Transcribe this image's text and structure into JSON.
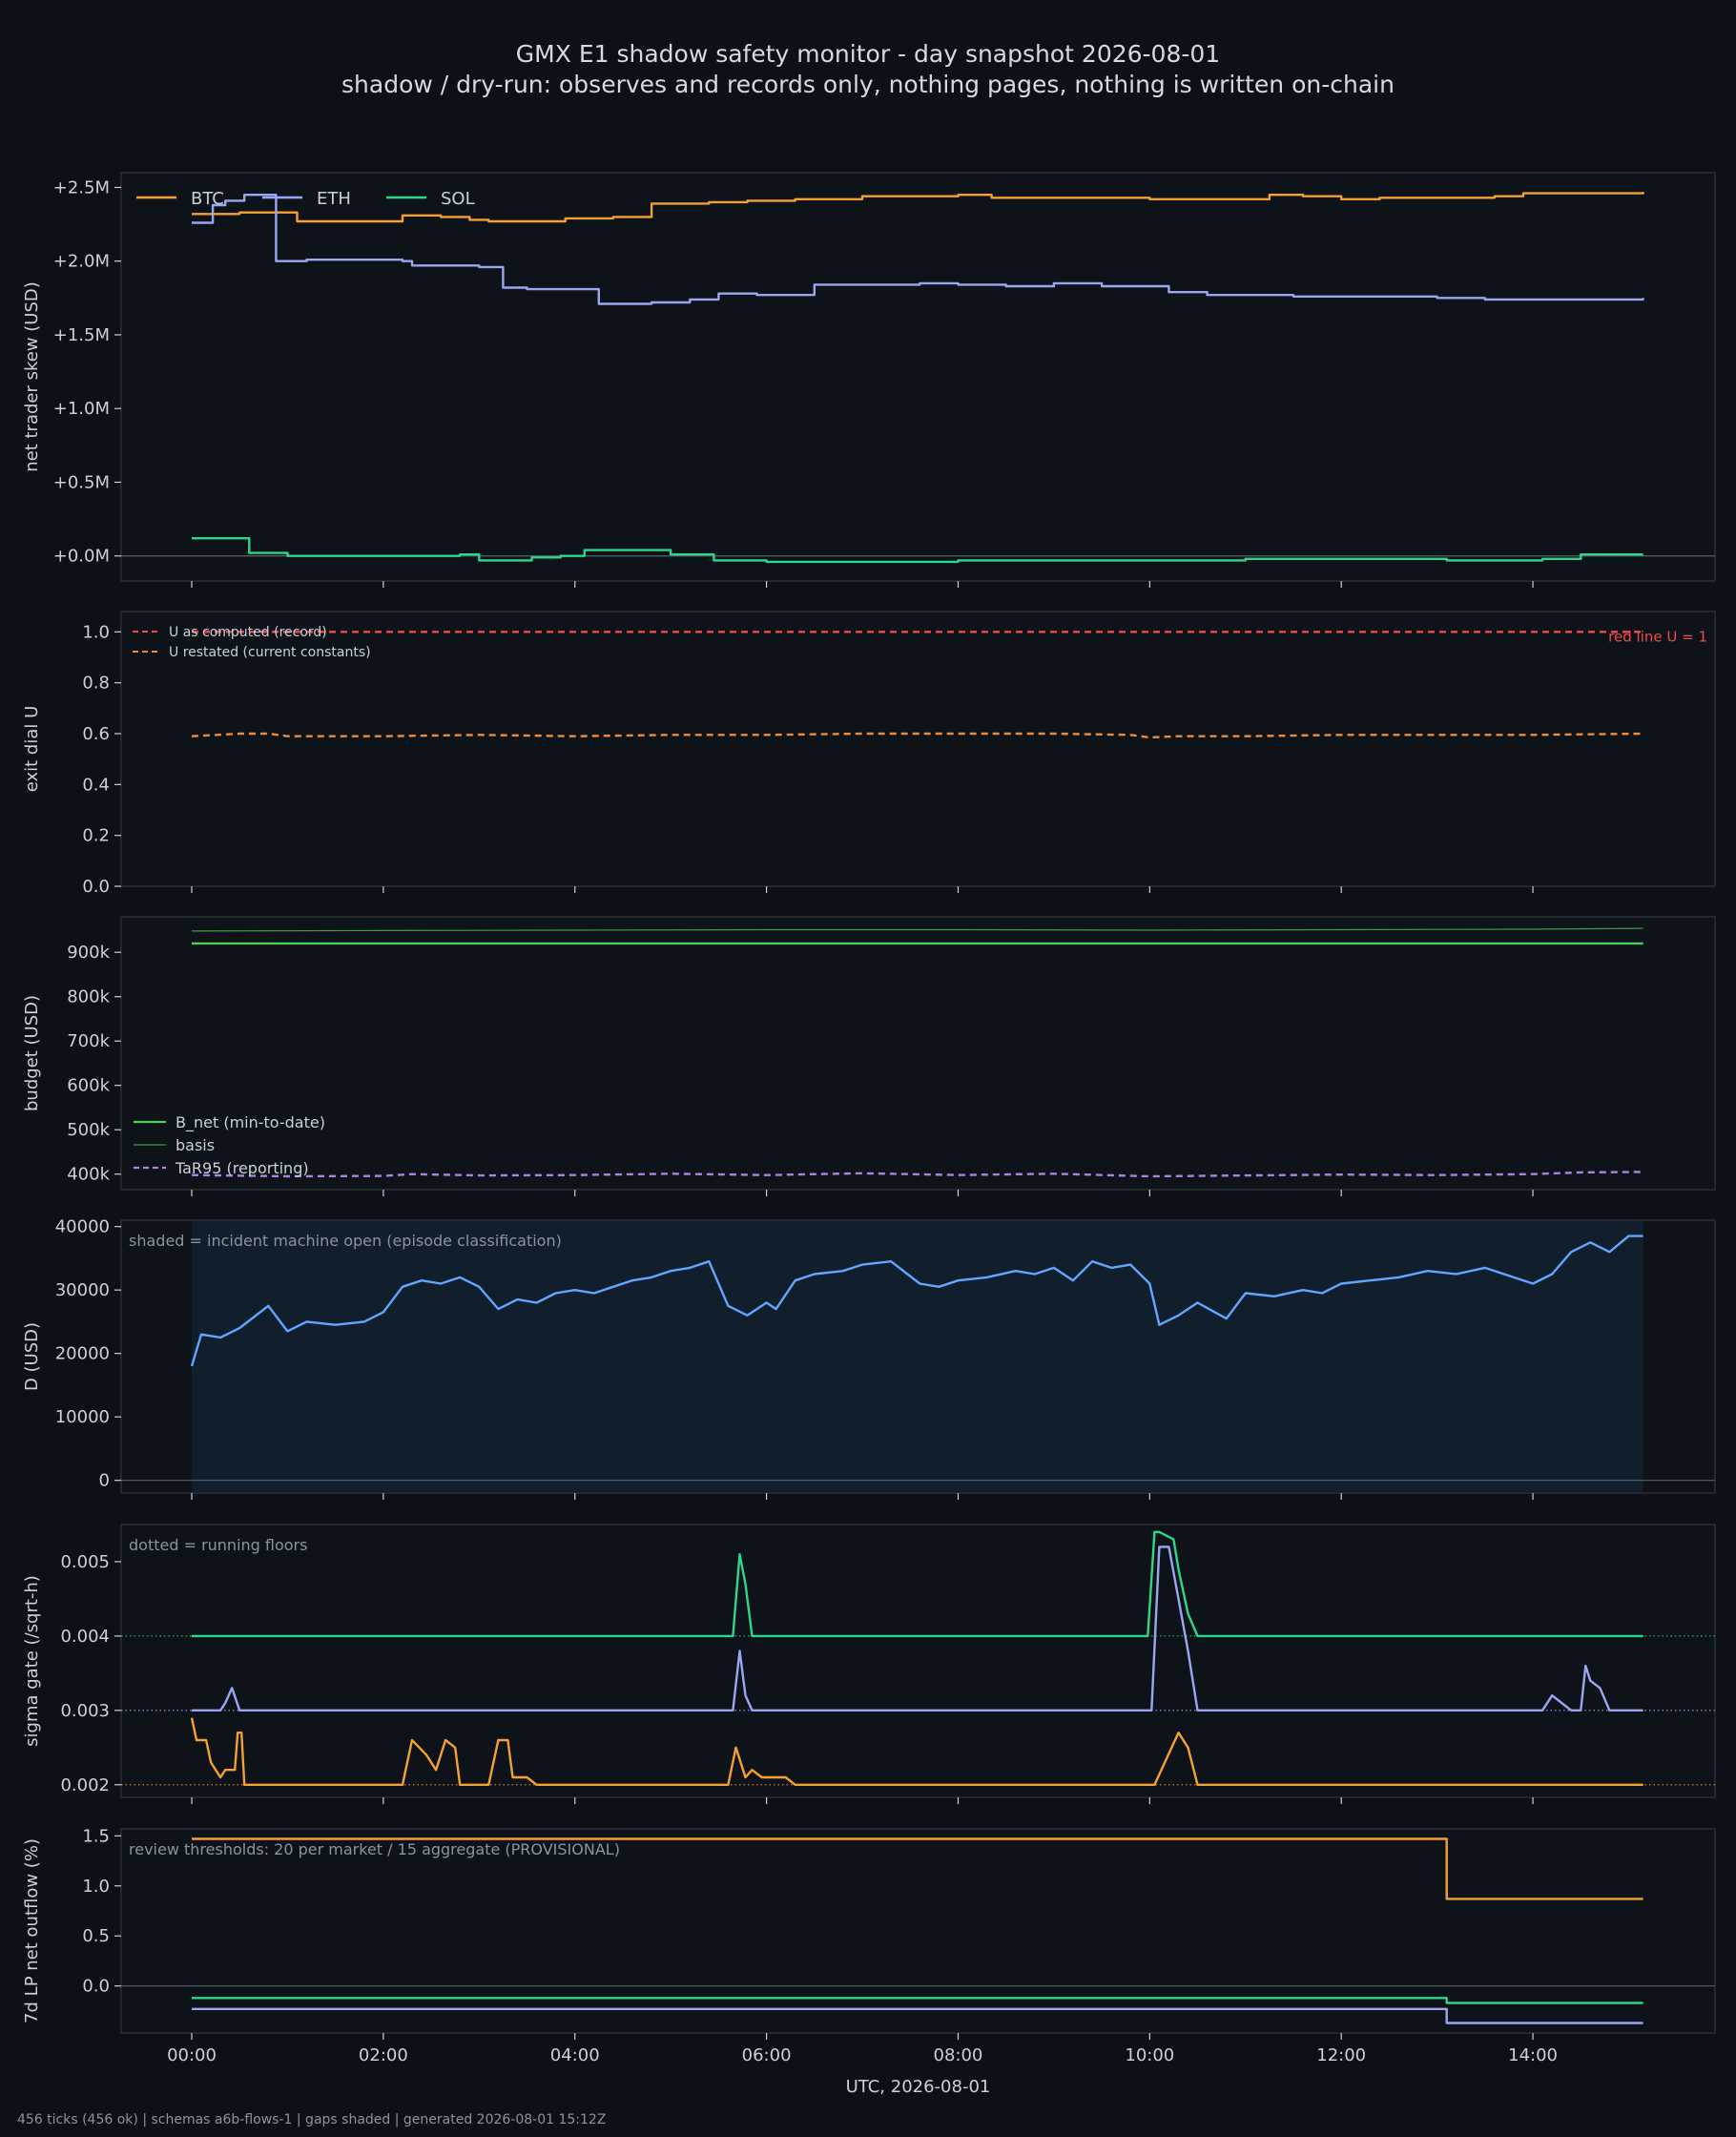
{
  "header": {
    "title": "GMX E1 shadow safety monitor - day snapshot 2026-08-01",
    "subtitle": "shadow / dry-run: observes and records only, nothing pages, nothing is written on-chain"
  },
  "footer": "456 ticks (456 ok) | schemas a6b-flows-1 | gaps shaded | generated 2026-08-01 15:12Z",
  "colors": {
    "background": "#0d1117",
    "panel": "#0e131a",
    "btc": "#f5a032",
    "eth": "#9aa6f2",
    "sol": "#2fd68a",
    "u_computed": "#f04a4a",
    "u_restated": "#f08a3a",
    "b_net": "#4fcf4f",
    "basis": "#3f9a4f",
    "tar95": "#a884e0",
    "d": "#62a6ff",
    "shade": "#122130"
  },
  "chart_data": [
    {
      "type": "line",
      "panel": "skew",
      "title": "",
      "xlabel": "",
      "ylabel": "net trader skew (USD)",
      "xlim": [
        0,
        15.15
      ],
      "ylim": [
        -0.17,
        2.6
      ],
      "yticks": [
        0,
        0.5,
        1.0,
        1.5,
        2.0,
        2.5
      ],
      "ytick_labels": [
        "+0.0M",
        "+0.5M",
        "+1.0M",
        "+1.5M",
        "+2.0M",
        "+2.5M"
      ],
      "zero_line": true,
      "legend": "top-left horizontal",
      "series": [
        {
          "name": "BTC",
          "color": "#f5a032",
          "step": true,
          "x": [
            0,
            0.5,
            1.1,
            2.2,
            2.6,
            2.9,
            3.1,
            3.9,
            4.4,
            4.8,
            5.4,
            5.8,
            6.3,
            7.0,
            8.0,
            8.35,
            9.4,
            10.0,
            10.9,
            11.25,
            11.6,
            12.0,
            12.4,
            13.0,
            13.6,
            13.9,
            14.2,
            14.6,
            15.15
          ],
          "y": [
            2.32,
            2.33,
            2.27,
            2.31,
            2.3,
            2.28,
            2.27,
            2.29,
            2.3,
            2.39,
            2.4,
            2.41,
            2.42,
            2.44,
            2.45,
            2.43,
            2.43,
            2.42,
            2.42,
            2.45,
            2.44,
            2.42,
            2.43,
            2.43,
            2.44,
            2.46,
            2.46,
            2.46,
            2.47
          ]
        },
        {
          "name": "ETH",
          "color": "#9aa6f2",
          "step": true,
          "x": [
            0,
            0.22,
            0.35,
            0.55,
            0.88,
            1.2,
            2.2,
            2.3,
            3.0,
            3.25,
            3.5,
            4.0,
            4.25,
            4.5,
            4.8,
            5.2,
            5.5,
            5.9,
            6.5,
            7.0,
            7.6,
            8.0,
            8.5,
            9.0,
            9.5,
            10.2,
            10.6,
            11.0,
            11.5,
            12.0,
            12.5,
            13.0,
            13.5,
            14.0,
            14.5,
            15.15
          ],
          "y": [
            2.26,
            2.38,
            2.41,
            2.45,
            2.0,
            2.01,
            2.0,
            1.97,
            1.96,
            1.82,
            1.81,
            1.81,
            1.71,
            1.71,
            1.72,
            1.74,
            1.78,
            1.77,
            1.84,
            1.84,
            1.85,
            1.84,
            1.83,
            1.85,
            1.83,
            1.79,
            1.77,
            1.77,
            1.76,
            1.76,
            1.76,
            1.75,
            1.74,
            1.74,
            1.74,
            1.75
          ]
        },
        {
          "name": "SOL",
          "color": "#2fd68a",
          "step": true,
          "x": [
            0,
            0.35,
            0.6,
            1.0,
            2.0,
            2.8,
            3.0,
            3.2,
            3.55,
            3.85,
            4.1,
            4.55,
            5.0,
            5.45,
            6.0,
            7.0,
            8.0,
            9.0,
            10.3,
            11.0,
            12.0,
            12.5,
            13.1,
            14.1,
            14.5,
            15.15
          ],
          "y": [
            0.12,
            0.12,
            0.02,
            0.0,
            0.0,
            0.01,
            -0.03,
            -0.03,
            -0.01,
            0.0,
            0.04,
            0.04,
            0.01,
            -0.03,
            -0.04,
            -0.04,
            -0.03,
            -0.03,
            -0.03,
            -0.02,
            -0.02,
            -0.02,
            -0.03,
            -0.02,
            0.01,
            0.01
          ]
        }
      ]
    },
    {
      "type": "line",
      "panel": "exit_dial",
      "title": "",
      "xlabel": "",
      "ylabel": "exit dial U",
      "xlim": [
        0,
        15.15
      ],
      "ylim": [
        0,
        1.08
      ],
      "yticks": [
        0,
        0.2,
        0.4,
        0.6,
        0.8,
        1.0
      ],
      "ytick_labels": [
        "0.0",
        "0.2",
        "0.4",
        "0.6",
        "0.8",
        "1.0"
      ],
      "legend": "top-left",
      "annotation": "red line U = 1",
      "reference_line": 1.0,
      "series": [
        {
          "name": "U as computed (record)",
          "color": "#f04a4a",
          "style": "dashed",
          "x": [
            0,
            15.15
          ],
          "y": [
            1.0,
            1.0
          ]
        },
        {
          "name": "U restated (current constants)",
          "color": "#f08a3a",
          "style": "dashed",
          "x": [
            0,
            0.5,
            0.8,
            1.0,
            2.0,
            3.0,
            4.0,
            5.0,
            6.0,
            7.0,
            8.0,
            9.0,
            9.8,
            10.0,
            10.3,
            11.0,
            12.0,
            13.0,
            14.0,
            15.15
          ],
          "y": [
            0.59,
            0.6,
            0.6,
            0.59,
            0.59,
            0.595,
            0.59,
            0.595,
            0.595,
            0.6,
            0.6,
            0.6,
            0.595,
            0.585,
            0.59,
            0.59,
            0.595,
            0.595,
            0.595,
            0.6
          ]
        }
      ]
    },
    {
      "type": "line",
      "panel": "budget",
      "title": "",
      "xlabel": "",
      "ylabel": "budget (USD)",
      "xlim": [
        0,
        15.15
      ],
      "ylim": [
        365000,
        980000
      ],
      "yticks": [
        400000,
        500000,
        600000,
        700000,
        800000,
        900000
      ],
      "ytick_labels": [
        "400k",
        "500k",
        "600k",
        "700k",
        "800k",
        "900k"
      ],
      "legend": "bottom-left",
      "series": [
        {
          "name": "B_net (min-to-date)",
          "color": "#4fcf4f",
          "x": [
            0,
            15.15
          ],
          "y": [
            920000,
            920000
          ]
        },
        {
          "name": "basis",
          "color": "#3f9a4f",
          "x": [
            0,
            2,
            4,
            6,
            8,
            10,
            12,
            14,
            15.15
          ],
          "y": [
            948000,
            949000,
            950000,
            951000,
            951000,
            950000,
            951000,
            952000,
            954000
          ]
        },
        {
          "name": "TaR95 (reporting)",
          "color": "#a884e0",
          "style": "dashed",
          "x": [
            0,
            1,
            2,
            2.3,
            3,
            4,
            5,
            6,
            7,
            8,
            9,
            10,
            11,
            12,
            13,
            14,
            14.5,
            15.15
          ],
          "y": [
            398000,
            395000,
            396000,
            400000,
            397000,
            398000,
            401000,
            398000,
            402000,
            398000,
            401000,
            395000,
            397000,
            399000,
            398000,
            400000,
            404000,
            405000
          ]
        }
      ]
    },
    {
      "type": "area",
      "panel": "D",
      "title": "",
      "xlabel": "",
      "ylabel": "D (USD)",
      "xlim": [
        0,
        15.15
      ],
      "ylim": [
        -2000,
        41000
      ],
      "yticks": [
        0,
        10000,
        20000,
        30000,
        40000
      ],
      "ytick_labels": [
        "0",
        "10000",
        "20000",
        "30000",
        "40000"
      ],
      "annotation": "shaded = incident machine open (episode classification)",
      "shaded_range": [
        0,
        15.15
      ],
      "zero_line": true,
      "series": [
        {
          "name": "D",
          "color": "#62a6ff",
          "x": [
            0,
            0.1,
            0.3,
            0.5,
            0.8,
            1.0,
            1.2,
            1.5,
            1.8,
            2.0,
            2.2,
            2.4,
            2.6,
            2.8,
            3.0,
            3.2,
            3.4,
            3.6,
            3.8,
            4.0,
            4.2,
            4.4,
            4.6,
            4.8,
            5.0,
            5.2,
            5.4,
            5.6,
            5.8,
            6.0,
            6.1,
            6.3,
            6.5,
            6.8,
            7.0,
            7.3,
            7.6,
            7.8,
            8.0,
            8.3,
            8.6,
            8.8,
            9.0,
            9.2,
            9.4,
            9.6,
            9.8,
            10.0,
            10.1,
            10.3,
            10.5,
            10.8,
            11.0,
            11.3,
            11.6,
            11.8,
            12.0,
            12.3,
            12.6,
            12.9,
            13.2,
            13.5,
            13.8,
            14.0,
            14.2,
            14.4,
            14.6,
            14.8,
            15.0,
            15.15
          ],
          "y": [
            18000,
            23000,
            22500,
            24000,
            27500,
            23500,
            25000,
            24500,
            25000,
            26500,
            30500,
            31500,
            31000,
            32000,
            30500,
            27000,
            28500,
            28000,
            29500,
            30000,
            29500,
            30500,
            31500,
            32000,
            33000,
            33500,
            34500,
            27500,
            26000,
            28000,
            27000,
            31500,
            32500,
            33000,
            34000,
            34500,
            31000,
            30500,
            31500,
            32000,
            33000,
            32500,
            33500,
            31500,
            34500,
            33500,
            34000,
            31000,
            24500,
            26000,
            28000,
            25500,
            29500,
            29000,
            30000,
            29500,
            31000,
            31500,
            32000,
            33000,
            32500,
            33500,
            32000,
            31000,
            32500,
            36000,
            37500,
            36000,
            38500,
            38500
          ]
        }
      ]
    },
    {
      "type": "line",
      "panel": "sigma_gate",
      "title": "",
      "xlabel": "",
      "ylabel": "sigma gate (/sqrt-h)",
      "xlim": [
        0,
        15.15
      ],
      "ylim": [
        0.00183,
        0.0055
      ],
      "yticks": [
        0.002,
        0.003,
        0.004,
        0.005
      ],
      "ytick_labels": [
        "0.002",
        "0.003",
        "0.004",
        "0.005"
      ],
      "annotation": "dotted = running floors",
      "floors": [
        {
          "value": 0.004,
          "color": "#2fd68a"
        },
        {
          "value": 0.003,
          "color": "#9aa6f2"
        },
        {
          "value": 0.002,
          "color": "#f5a032"
        }
      ],
      "series": [
        {
          "name": "",
          "color": "#2fd68a",
          "x": [
            0,
            5.65,
            5.72,
            5.78,
            5.85,
            9.98,
            10.05,
            10.1,
            10.25,
            10.3,
            10.4,
            10.5,
            15.15
          ],
          "y": [
            0.004,
            0.004,
            0.0051,
            0.0047,
            0.004,
            0.004,
            0.0054,
            0.0054,
            0.0053,
            0.0049,
            0.0043,
            0.004,
            0.004
          ]
        },
        {
          "name": "",
          "color": "#9aa6f2",
          "x": [
            0,
            0.3,
            0.35,
            0.42,
            0.5,
            5.65,
            5.72,
            5.78,
            5.85,
            10.02,
            10.1,
            10.2,
            10.3,
            10.4,
            10.5,
            14.1,
            14.2,
            14.3,
            14.4,
            14.5,
            14.55,
            14.6,
            14.7,
            14.8,
            15.15
          ],
          "y": [
            0.003,
            0.003,
            0.0031,
            0.0033,
            0.003,
            0.003,
            0.0038,
            0.0032,
            0.003,
            0.003,
            0.0052,
            0.0052,
            0.0045,
            0.0038,
            0.003,
            0.003,
            0.0032,
            0.0031,
            0.003,
            0.003,
            0.0036,
            0.0034,
            0.0033,
            0.003,
            0.003
          ]
        },
        {
          "name": "",
          "color": "#f5a032",
          "x": [
            0,
            0.05,
            0.15,
            0.2,
            0.3,
            0.35,
            0.45,
            0.48,
            0.52,
            0.55,
            2.2,
            2.3,
            2.45,
            2.55,
            2.65,
            2.75,
            2.8,
            3.1,
            3.2,
            3.3,
            3.35,
            3.5,
            3.6,
            5.6,
            5.68,
            5.78,
            5.85,
            5.95,
            6.2,
            6.3,
            10.05,
            10.3,
            10.4,
            10.5,
            15.15
          ],
          "y": [
            0.0029,
            0.0026,
            0.0026,
            0.0023,
            0.0021,
            0.0022,
            0.0022,
            0.0027,
            0.0027,
            0.002,
            0.002,
            0.0026,
            0.0024,
            0.0022,
            0.0026,
            0.0025,
            0.002,
            0.002,
            0.0026,
            0.0026,
            0.0021,
            0.0021,
            0.002,
            0.002,
            0.0025,
            0.0021,
            0.0022,
            0.0021,
            0.0021,
            0.002,
            0.002,
            0.0027,
            0.0025,
            0.002,
            0.002
          ]
        }
      ]
    },
    {
      "type": "line",
      "panel": "lp_outflow",
      "title": "",
      "xlabel": "UTC, 2026-08-01",
      "ylabel": "7d LP net outflow (%)",
      "xlim": [
        0,
        15.15
      ],
      "ylim": [
        -0.47,
        1.57
      ],
      "yticks": [
        0,
        0.5,
        1.0,
        1.5
      ],
      "ytick_labels": [
        "0.0",
        "0.5",
        "1.0",
        "1.5"
      ],
      "annotation": "review thresholds: 20 per market / 15 aggregate (PROVISIONAL)",
      "zero_line": true,
      "series": [
        {
          "name": "",
          "color": "#f5a032",
          "step": true,
          "x": [
            0,
            13.1,
            15.15
          ],
          "y": [
            1.47,
            0.87,
            0.87
          ]
        },
        {
          "name": "",
          "color": "#2fd68a",
          "step": true,
          "x": [
            0,
            13.1,
            15.15
          ],
          "y": [
            -0.12,
            -0.17,
            -0.17
          ]
        },
        {
          "name": "",
          "color": "#9aa6f2",
          "step": true,
          "x": [
            0,
            13.1,
            15.15
          ],
          "y": [
            -0.23,
            -0.37,
            -0.37
          ]
        }
      ]
    }
  ],
  "x_axis": {
    "ticks": [
      0,
      2,
      4,
      6,
      8,
      10,
      12,
      14
    ],
    "tick_labels": [
      "00:00",
      "02:00",
      "04:00",
      "06:00",
      "08:00",
      "10:00",
      "12:00",
      "14:00"
    ]
  }
}
